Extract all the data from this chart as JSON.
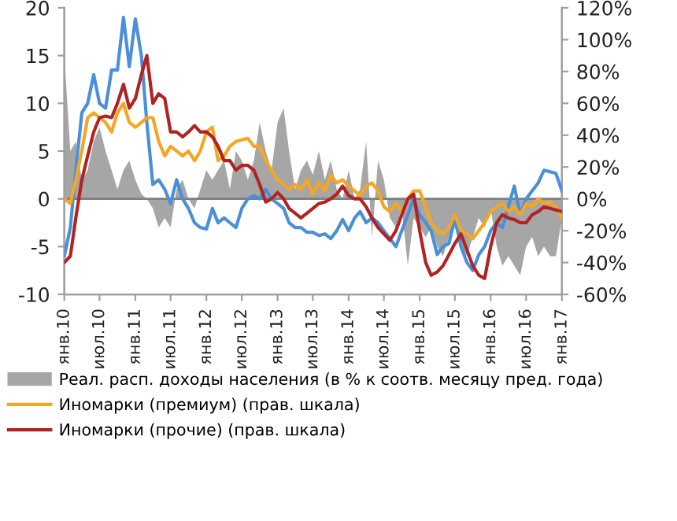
{
  "chart_data": {
    "type": "line",
    "x": [
      "2010-01",
      "2010-02",
      "2010-03",
      "2010-04",
      "2010-05",
      "2010-06",
      "2010-07",
      "2010-08",
      "2010-09",
      "2010-10",
      "2010-11",
      "2010-12",
      "2011-01",
      "2011-02",
      "2011-03",
      "2011-04",
      "2011-05",
      "2011-06",
      "2011-07",
      "2011-08",
      "2011-09",
      "2011-10",
      "2011-11",
      "2011-12",
      "2012-01",
      "2012-02",
      "2012-03",
      "2012-04",
      "2012-05",
      "2012-06",
      "2012-07",
      "2012-08",
      "2012-09",
      "2012-10",
      "2012-11",
      "2012-12",
      "2013-01",
      "2013-02",
      "2013-03",
      "2013-04",
      "2013-05",
      "2013-06",
      "2013-07",
      "2013-08",
      "2013-09",
      "2013-10",
      "2013-11",
      "2013-12",
      "2014-01",
      "2014-02",
      "2014-03",
      "2014-04",
      "2014-05",
      "2014-06",
      "2014-07",
      "2014-08",
      "2014-09",
      "2014-10",
      "2014-11",
      "2014-12",
      "2015-01",
      "2015-02",
      "2015-03",
      "2015-04",
      "2015-05",
      "2015-06",
      "2015-07",
      "2015-08",
      "2015-09",
      "2015-10",
      "2015-11",
      "2015-12",
      "2016-01",
      "2016-02",
      "2016-03",
      "2016-04",
      "2016-05",
      "2016-06",
      "2016-07",
      "2016-08",
      "2016-09",
      "2016-10",
      "2016-11",
      "2016-12",
      "2017-01"
    ],
    "series": [
      {
        "name": "Реал. расп. доходы населения (в % к соотв. месяцу пред. года)",
        "type": "area",
        "color": "#a6a6a6",
        "values": [
          15,
          5,
          6,
          2,
          3,
          6,
          7.5,
          5,
          3,
          1,
          3,
          4,
          2,
          0.5,
          0,
          -1,
          -3,
          -2,
          -3,
          1,
          2,
          0,
          -1,
          1,
          3,
          2,
          3,
          4,
          1,
          5,
          4,
          2,
          4,
          8,
          5,
          3,
          8,
          9.5,
          5,
          1,
          3,
          4,
          2.5,
          5,
          2,
          4,
          1,
          0,
          3,
          0,
          1,
          6,
          -4,
          4,
          2,
          -2,
          -3,
          -1,
          -7,
          -2,
          -3,
          -4,
          -3,
          -5,
          -6,
          -4,
          -3,
          -5,
          -6,
          -4,
          -2,
          -3,
          -1,
          -5,
          -7,
          -6,
          -7,
          -8,
          -5,
          -4,
          -6,
          -5,
          -6,
          -6,
          -2
        ]
      },
      {
        "color": "#4a90d9",
        "axis": "y2",
        "values": [
          -36,
          -18,
          18,
          54,
          60,
          78,
          60,
          57,
          81,
          81,
          114,
          83,
          113,
          90,
          48,
          9,
          12,
          6,
          -3,
          12,
          0,
          -6,
          -15,
          -18,
          -19,
          -6,
          -15,
          -12,
          -15,
          -18,
          -6,
          0,
          2,
          0,
          6,
          0,
          -3,
          -6,
          -15,
          -18,
          -18,
          -21,
          -21,
          -23,
          -22,
          -25,
          -20,
          -13,
          -20,
          -12,
          -8,
          -15,
          -12,
          -15,
          -20,
          -25,
          -30,
          -20,
          -10,
          0,
          -10,
          -15,
          -20,
          -35,
          -30,
          -28,
          -12,
          -30,
          -40,
          -45,
          -35,
          -30,
          -20,
          -15,
          -18,
          -5,
          8,
          -10,
          0,
          5,
          10,
          18,
          17,
          16,
          5
        ]
      },
      {
        "name": "Иномарки (премиум) (прав. шкала)",
        "color": "#f5a623",
        "axis": "y2",
        "values": [
          0,
          -3,
          12,
          30,
          51,
          54,
          51,
          48,
          42,
          54,
          60,
          48,
          45,
          48,
          51,
          51,
          36,
          27,
          33,
          30,
          27,
          30,
          24,
          30,
          42,
          45,
          24,
          27,
          33,
          36,
          37,
          38,
          33,
          33,
          24,
          18,
          12,
          9,
          6,
          9,
          6,
          12,
          3,
          10,
          5,
          15,
          10,
          12,
          8,
          5,
          2,
          8,
          10,
          5,
          -5,
          -8,
          -3,
          -8,
          0,
          5,
          5,
          -5,
          -15,
          -20,
          -22,
          -18,
          -10,
          -20,
          -22,
          -25,
          -20,
          -15,
          -8,
          -5,
          -3,
          -8,
          -5,
          -10,
          -3,
          -5,
          0,
          -3,
          -2,
          -5,
          -12
        ]
      },
      {
        "name": "Иномарки (прочие) (прав. шкала)",
        "color": "#b22222",
        "axis": "y2",
        "values": [
          -40,
          -36,
          -12,
          12,
          27,
          42,
          51,
          52,
          51,
          60,
          72,
          57,
          63,
          78,
          90,
          60,
          66,
          63,
          42,
          42,
          39,
          42,
          46,
          42,
          42,
          39,
          33,
          24,
          24,
          18,
          21,
          21,
          18,
          9,
          -2,
          0,
          4,
          0,
          -6,
          -9,
          -12,
          -9,
          -6,
          -3,
          -2,
          0,
          3,
          8,
          2,
          0,
          0,
          -5,
          -12,
          -18,
          -22,
          -26,
          -20,
          -10,
          0,
          3,
          -20,
          -40,
          -48,
          -46,
          -42,
          -35,
          -28,
          -22,
          -32,
          -42,
          -48,
          -50,
          -30,
          -15,
          -10,
          -12,
          -13,
          -15,
          -15,
          -10,
          -8,
          -5,
          -6,
          -7,
          -8
        ]
      }
    ],
    "ylim": [
      -10,
      20
    ],
    "yticks": [
      -10,
      -5,
      0,
      5,
      10,
      15,
      20
    ],
    "y2lim": [
      -60,
      120
    ],
    "y2ticks": [
      {
        "value": -60,
        "label": "-60%"
      },
      {
        "value": -40,
        "label": "-40%"
      },
      {
        "value": -20,
        "label": "-20%"
      },
      {
        "value": 0,
        "label": "0%"
      },
      {
        "value": 20,
        "label": "20%"
      },
      {
        "value": 40,
        "label": "40%"
      },
      {
        "value": 60,
        "label": "60%"
      },
      {
        "value": 80,
        "label": "80%"
      },
      {
        "value": 100,
        "label": "100%"
      },
      {
        "value": 120,
        "label": "120%"
      }
    ],
    "xlim": [
      "2010-01",
      "2017-01"
    ],
    "xticks": [
      {
        "value": "2010-01",
        "label": "янв.10"
      },
      {
        "value": "2010-07",
        "label": "июл.10"
      },
      {
        "value": "2011-01",
        "label": "янв.11"
      },
      {
        "value": "2011-07",
        "label": "июл.11"
      },
      {
        "value": "2012-01",
        "label": "янв.12"
      },
      {
        "value": "2012-07",
        "label": "июл.12"
      },
      {
        "value": "2013-01",
        "label": "янв.13"
      },
      {
        "value": "2013-07",
        "label": "июл.13"
      },
      {
        "value": "2014-01",
        "label": "янв.14"
      },
      {
        "value": "2014-07",
        "label": "июл.14"
      },
      {
        "value": "2015-01",
        "label": "янв.15"
      },
      {
        "value": "2015-07",
        "label": "июл.15"
      },
      {
        "value": "2016-01",
        "label": "янв.16"
      },
      {
        "value": "2016-07",
        "label": "июл.16"
      },
      {
        "value": "2017-01",
        "label": "янв.17"
      }
    ],
    "ref_lines": [
      {
        "axis": "y",
        "value": 0,
        "color": "#808080"
      }
    ],
    "grid": false,
    "legend": "bottom"
  }
}
